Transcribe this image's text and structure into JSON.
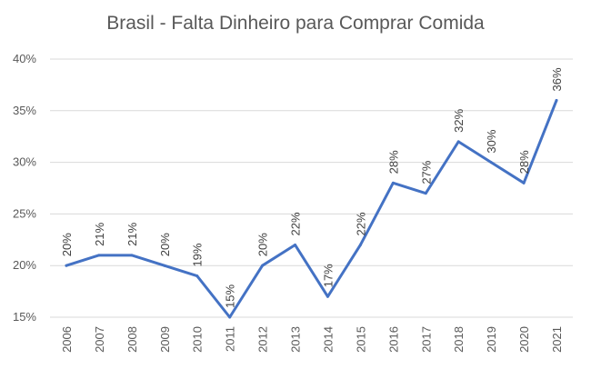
{
  "chart_data": {
    "type": "line",
    "title": "Brasil - Falta Dinheiro para Comprar Comida",
    "xlabel": "",
    "ylabel": "",
    "x": [
      "2006",
      "2007",
      "2008",
      "2009",
      "2010",
      "2011",
      "2012",
      "2013",
      "2014",
      "2015",
      "2016",
      "2017",
      "2018",
      "2019",
      "2020",
      "2021"
    ],
    "values": [
      20,
      21,
      21,
      20,
      19,
      15,
      20,
      22,
      17,
      22,
      28,
      27,
      32,
      30,
      28,
      36
    ],
    "data_labels": [
      "20%",
      "21%",
      "21%",
      "20%",
      "19%",
      "15%",
      "20%",
      "22%",
      "17%",
      "22%",
      "28%",
      "27%",
      "32%",
      "30%",
      "28%",
      "36%"
    ],
    "ylim": [
      15,
      40
    ],
    "yticks": [
      15,
      20,
      25,
      30,
      35,
      40
    ],
    "ytick_labels": [
      "15%",
      "20%",
      "25%",
      "30%",
      "35%",
      "40%"
    ],
    "grid": true,
    "legend": "none",
    "colors": {
      "line": "#4472C4",
      "grid": "#D9D9D9",
      "text": "#595959",
      "title": "#595959"
    }
  }
}
